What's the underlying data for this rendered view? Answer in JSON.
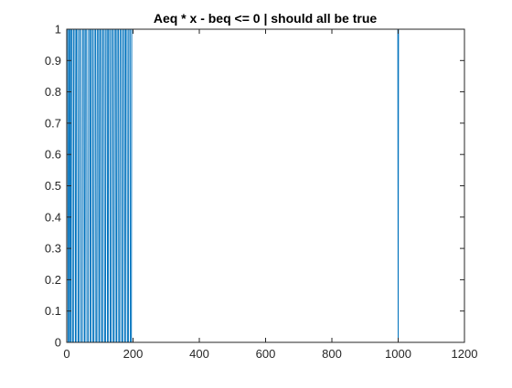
{
  "chart_data": {
    "type": "line",
    "title": "Aeq * x - beq <= 0 | should all be true",
    "xlabel": "",
    "ylabel": "",
    "xlim": [
      0,
      1200
    ],
    "ylim": [
      0,
      1
    ],
    "x_ticks": [
      0,
      200,
      400,
      600,
      800,
      1000,
      1200
    ],
    "y_ticks": [
      0,
      0.1,
      0.2,
      0.3,
      0.4,
      0.5,
      0.6,
      0.7,
      0.8,
      0.9,
      1
    ],
    "grid": false,
    "line_color": "#0072BD",
    "series": [
      {
        "x": [
          1,
          3,
          4,
          6,
          7,
          9,
          10,
          12,
          13,
          16,
          17,
          20,
          21,
          25,
          26,
          28,
          29,
          33,
          34,
          37,
          38,
          42,
          43,
          47,
          48,
          52,
          53,
          55,
          56,
          60,
          61,
          65,
          66,
          70,
          71,
          73,
          74,
          78,
          79,
          82,
          83,
          87,
          88,
          91,
          92,
          96,
          97,
          99,
          100,
          104,
          105,
          108,
          109,
          113,
          114,
          117,
          118,
          122,
          123,
          125,
          126,
          130,
          131,
          134,
          135,
          139,
          140,
          143,
          144,
          148,
          149,
          151,
          152,
          156,
          157,
          160,
          161,
          165,
          166,
          169,
          170,
          174,
          175,
          177,
          178,
          182,
          183,
          186,
          187,
          191,
          192,
          195,
          196,
          199,
          200,
          999,
          1000,
          1001
        ],
        "y": [
          1,
          1,
          0,
          0,
          1,
          1,
          0,
          0,
          1,
          1,
          0,
          0,
          1,
          1,
          0,
          0,
          1,
          1,
          0,
          0,
          1,
          1,
          0,
          0,
          1,
          1,
          0,
          0,
          1,
          1,
          0,
          0,
          1,
          1,
          0,
          0,
          1,
          1,
          0,
          0,
          1,
          1,
          0,
          0,
          1,
          1,
          0,
          0,
          1,
          1,
          0,
          0,
          1,
          1,
          0,
          0,
          1,
          1,
          0,
          0,
          1,
          1,
          0,
          0,
          1,
          1,
          0,
          0,
          1,
          1,
          0,
          0,
          1,
          1,
          0,
          0,
          1,
          1,
          0,
          0,
          1,
          1,
          0,
          0,
          1,
          1,
          0,
          0,
          1,
          1,
          0,
          0,
          1,
          1,
          1,
          1,
          0,
          1
        ]
      }
    ]
  }
}
